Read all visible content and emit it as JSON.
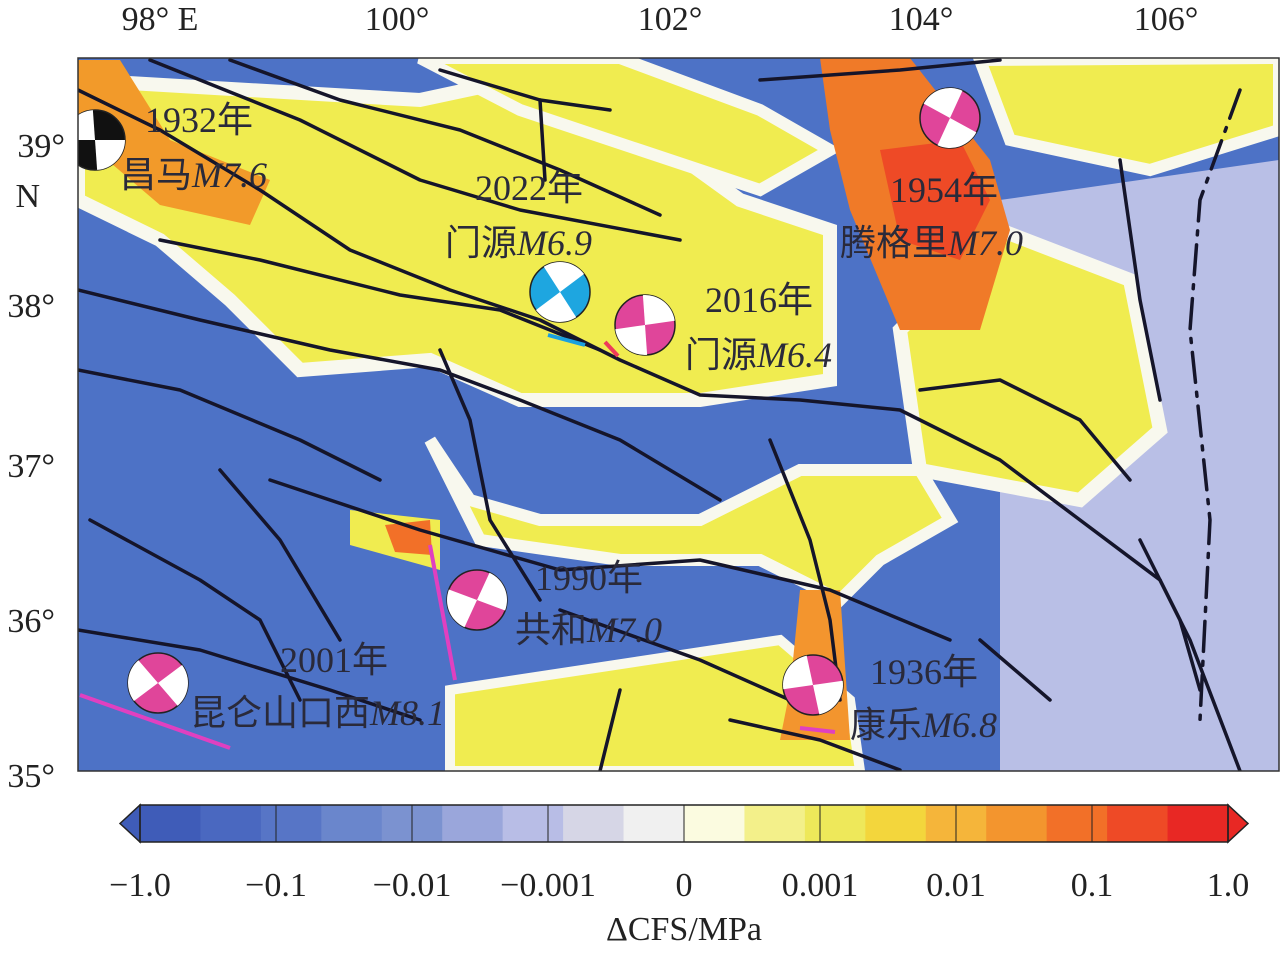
{
  "map": {
    "x_ticks": [
      "98° E",
      "100°",
      "102°",
      "104°",
      "106°"
    ],
    "y_ticks": [
      "39°",
      "N",
      "38°",
      "37°",
      "36°",
      "35°"
    ],
    "events": [
      {
        "year": "1932年",
        "name": "昌马",
        "magnitude": "M7.6"
      },
      {
        "year": "2022年",
        "name": "门源",
        "magnitude": "M6.9"
      },
      {
        "year": "2016年",
        "name": "门源",
        "magnitude": "M6.4"
      },
      {
        "year": "1954年",
        "name": "腾格里",
        "magnitude": "M7.0"
      },
      {
        "year": "1990年",
        "name": "共和",
        "magnitude": "M7.0"
      },
      {
        "year": "2001年",
        "name": "昆仑山口西",
        "magnitude": "M8.1"
      },
      {
        "year": "1936年",
        "name": "康乐",
        "magnitude": "M6.8"
      }
    ]
  },
  "colorbar": {
    "colors": [
      "#3f5cb8",
      "#4a68c0",
      "#5775c6",
      "#6a86cc",
      "#7b92d0",
      "#9aa6db",
      "#b8bde6",
      "#d6d6e6",
      "#f0f0f0",
      "#fbfbe0",
      "#f3f08a",
      "#eee85a",
      "#f3d63c",
      "#f5b53a",
      "#f3952e",
      "#f27028",
      "#ee4a26",
      "#e82824"
    ],
    "ticks": [
      {
        "value": -1,
        "label": "−1.0"
      },
      {
        "value": -0.1,
        "label": "−0.1"
      },
      {
        "value": -0.01,
        "label": "−0.01"
      },
      {
        "value": -0.001,
        "label": "−0.001"
      },
      0,
      0.001,
      0.01,
      0.1,
      {
        "value": 1,
        "label": "1.0"
      }
    ],
    "label": "ΔCFS/MPa"
  }
}
